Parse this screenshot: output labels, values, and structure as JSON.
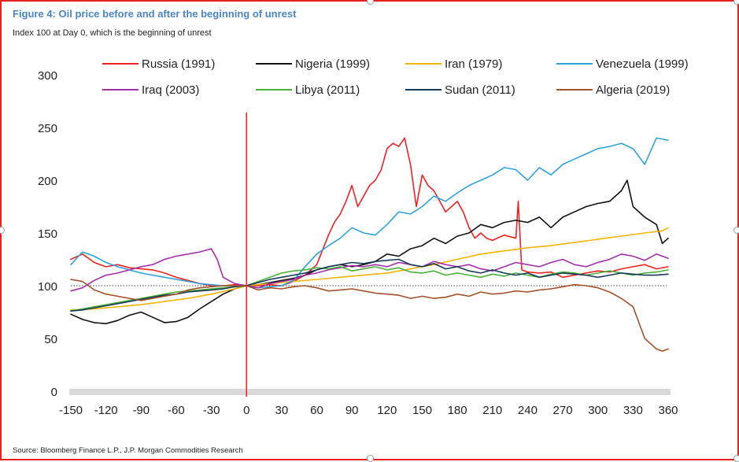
{
  "chart_data": {
    "type": "line",
    "title": "Figure 4: Oil price before and after the beginning of unrest",
    "subtitle": "Index 100 at Day 0, which is the beginning of unrest",
    "source": "Source: Bloomberg Finance L.P., J.P. Morgan Commodities Research",
    "xlabel": "",
    "ylabel": "",
    "xlim": [
      -150,
      360
    ],
    "ylim": [
      0,
      300
    ],
    "x_ticks": [
      -150,
      -120,
      -90,
      -60,
      -30,
      0,
      30,
      60,
      90,
      120,
      150,
      180,
      210,
      240,
      270,
      300,
      330,
      360
    ],
    "y_ticks": [
      0,
      50,
      100,
      150,
      200,
      250,
      300
    ],
    "reference_line_y": 100,
    "event_line_x": 0,
    "grid": false,
    "legend_position": "top",
    "series": [
      {
        "name": "Russia (1991)",
        "color": "#ee2222",
        "x": [
          -150,
          -140,
          -130,
          -120,
          -110,
          -100,
          -90,
          -80,
          -70,
          -60,
          -50,
          -40,
          -30,
          -20,
          -10,
          0,
          10,
          20,
          30,
          40,
          50,
          60,
          70,
          75,
          80,
          85,
          90,
          95,
          100,
          105,
          110,
          115,
          120,
          125,
          130,
          135,
          140,
          145,
          150,
          155,
          160,
          165,
          170,
          175,
          180,
          185,
          190,
          195,
          200,
          205,
          210,
          220,
          230,
          232,
          235,
          240,
          250,
          260,
          270,
          280,
          290,
          300,
          310,
          320,
          330,
          340,
          350,
          360
        ],
        "y": [
          125,
          130,
          122,
          118,
          120,
          117,
          116,
          115,
          112,
          108,
          105,
          102,
          100,
          100,
          101,
          100,
          100,
          101,
          100,
          104,
          110,
          120,
          148,
          160,
          168,
          180,
          195,
          175,
          185,
          195,
          200,
          210,
          230,
          235,
          232,
          240,
          215,
          175,
          205,
          195,
          190,
          180,
          170,
          175,
          180,
          170,
          155,
          145,
          150,
          145,
          143,
          148,
          145,
          180,
          115,
          113,
          112,
          113,
          108,
          110,
          112,
          114,
          113,
          116,
          118,
          120,
          116,
          118
        ]
      },
      {
        "name": "Nigeria (1999)",
        "color": "#111111",
        "x": [
          -150,
          -140,
          -130,
          -120,
          -110,
          -100,
          -90,
          -80,
          -70,
          -60,
          -50,
          -40,
          -30,
          -20,
          -10,
          0,
          10,
          20,
          30,
          40,
          50,
          60,
          70,
          80,
          90,
          100,
          110,
          120,
          130,
          140,
          150,
          160,
          170,
          180,
          190,
          200,
          210,
          220,
          230,
          240,
          250,
          260,
          270,
          280,
          290,
          300,
          310,
          320,
          325,
          330,
          340,
          350,
          355,
          360
        ],
        "y": [
          73,
          68,
          65,
          64,
          67,
          72,
          75,
          70,
          65,
          66,
          70,
          78,
          85,
          92,
          97,
          100,
          101,
          103,
          105,
          107,
          110,
          115,
          118,
          120,
          118,
          120,
          123,
          130,
          128,
          135,
          138,
          145,
          140,
          147,
          150,
          158,
          155,
          160,
          162,
          160,
          165,
          155,
          165,
          170,
          175,
          178,
          180,
          190,
          200,
          175,
          165,
          158,
          140,
          145
        ]
      },
      {
        "name": "Iran (1979)",
        "color": "#f4b400",
        "x": [
          -150,
          -130,
          -110,
          -90,
          -70,
          -50,
          -30,
          -10,
          0,
          20,
          40,
          60,
          80,
          100,
          120,
          140,
          160,
          180,
          200,
          220,
          240,
          260,
          280,
          300,
          320,
          340,
          355,
          360
        ],
        "y": [
          77,
          78,
          80,
          82,
          85,
          88,
          92,
          97,
          100,
          102,
          104,
          106,
          108,
          110,
          112,
          116,
          120,
          125,
          130,
          133,
          136,
          138,
          141,
          144,
          147,
          150,
          152,
          155
        ]
      },
      {
        "name": "Venezuela (1999)",
        "color": "#2ea1d8",
        "x": [
          -150,
          -140,
          -130,
          -120,
          -110,
          -100,
          -90,
          -80,
          -70,
          -60,
          -50,
          -40,
          -30,
          -20,
          -10,
          0,
          10,
          20,
          30,
          40,
          50,
          60,
          70,
          80,
          90,
          100,
          110,
          120,
          130,
          140,
          150,
          160,
          170,
          180,
          190,
          200,
          210,
          220,
          230,
          240,
          250,
          260,
          270,
          280,
          290,
          300,
          310,
          320,
          330,
          340,
          350,
          360
        ],
        "y": [
          120,
          132,
          128,
          122,
          118,
          115,
          112,
          110,
          108,
          106,
          104,
          102,
          101,
          100,
          100,
          100,
          98,
          99,
          100,
          105,
          118,
          130,
          138,
          145,
          155,
          150,
          148,
          158,
          170,
          168,
          175,
          185,
          180,
          188,
          195,
          200,
          205,
          212,
          210,
          200,
          212,
          205,
          215,
          220,
          225,
          230,
          232,
          235,
          230,
          215,
          240,
          238
        ]
      },
      {
        "name": "Iraq (2003)",
        "color": "#a22fa8",
        "x": [
          -150,
          -140,
          -130,
          -120,
          -110,
          -100,
          -90,
          -80,
          -70,
          -60,
          -50,
          -40,
          -30,
          -25,
          -20,
          -10,
          0,
          10,
          20,
          30,
          40,
          50,
          60,
          70,
          80,
          90,
          100,
          110,
          120,
          130,
          140,
          150,
          160,
          170,
          180,
          190,
          200,
          210,
          220,
          230,
          240,
          250,
          260,
          270,
          280,
          290,
          300,
          310,
          320,
          330,
          340,
          350,
          360
        ],
        "y": [
          95,
          98,
          105,
          110,
          112,
          115,
          118,
          120,
          125,
          128,
          130,
          132,
          135,
          125,
          108,
          102,
          100,
          98,
          102,
          104,
          106,
          110,
          112,
          115,
          117,
          119,
          118,
          120,
          118,
          122,
          120,
          118,
          123,
          120,
          118,
          120,
          116,
          114,
          118,
          122,
          120,
          118,
          122,
          125,
          120,
          118,
          122,
          125,
          130,
          128,
          124,
          130,
          126
        ]
      },
      {
        "name": "Libya (2011)",
        "color": "#4aae3a",
        "x": [
          -150,
          -140,
          -130,
          -120,
          -110,
          -100,
          -90,
          -80,
          -70,
          -60,
          -50,
          -40,
          -30,
          -20,
          -10,
          0,
          10,
          20,
          30,
          40,
          50,
          60,
          70,
          80,
          90,
          100,
          110,
          120,
          130,
          140,
          150,
          160,
          170,
          180,
          190,
          200,
          210,
          220,
          230,
          240,
          250,
          260,
          270,
          280,
          290,
          300,
          310,
          320,
          330,
          340,
          350,
          360
        ],
        "y": [
          76,
          78,
          80,
          82,
          84,
          86,
          88,
          90,
          92,
          94,
          95,
          96,
          97,
          98,
          99,
          100,
          104,
          108,
          112,
          114,
          115,
          117,
          116,
          118,
          114,
          116,
          118,
          115,
          117,
          113,
          112,
          114,
          110,
          112,
          110,
          108,
          111,
          109,
          112,
          110,
          108,
          111,
          113,
          112,
          110,
          112,
          114,
          112,
          110,
          112,
          113,
          115
        ]
      },
      {
        "name": "Sudan (2011)",
        "color": "#173a57",
        "x": [
          -150,
          -140,
          -130,
          -120,
          -110,
          -100,
          -90,
          -80,
          -70,
          -60,
          -50,
          -40,
          -30,
          -20,
          -10,
          0,
          10,
          20,
          30,
          40,
          50,
          60,
          70,
          80,
          90,
          100,
          110,
          120,
          130,
          140,
          150,
          160,
          170,
          180,
          190,
          200,
          210,
          220,
          230,
          240,
          250,
          260,
          270,
          280,
          290,
          300,
          310,
          320,
          330,
          340,
          350,
          360
        ],
        "y": [
          76,
          77,
          79,
          81,
          83,
          85,
          87,
          89,
          91,
          92,
          94,
          95,
          96,
          97,
          99,
          100,
          103,
          106,
          108,
          110,
          112,
          115,
          118,
          120,
          122,
          121,
          123,
          124,
          125,
          120,
          118,
          121,
          116,
          118,
          114,
          112,
          115,
          112,
          110,
          112,
          108,
          110,
          112,
          111,
          110,
          108,
          110,
          112,
          111,
          110,
          110,
          111
        ]
      },
      {
        "name": "Algeria (2019)",
        "color": "#a0522d",
        "x": [
          -150,
          -140,
          -130,
          -120,
          -110,
          -100,
          -90,
          -80,
          -70,
          -60,
          -50,
          -40,
          -30,
          -20,
          -10,
          0,
          10,
          20,
          30,
          40,
          50,
          60,
          70,
          80,
          90,
          100,
          110,
          120,
          130,
          140,
          150,
          160,
          170,
          180,
          190,
          200,
          210,
          220,
          230,
          240,
          250,
          260,
          270,
          280,
          290,
          300,
          310,
          320,
          330,
          335,
          340,
          345,
          350,
          355,
          360
        ],
        "y": [
          106,
          104,
          96,
          92,
          90,
          88,
          86,
          88,
          90,
          92,
          96,
          98,
          99,
          100,
          100,
          100,
          96,
          98,
          97,
          99,
          100,
          98,
          95,
          96,
          97,
          95,
          93,
          92,
          91,
          88,
          90,
          88,
          89,
          92,
          90,
          94,
          92,
          93,
          95,
          94,
          96,
          97,
          99,
          101,
          100,
          98,
          94,
          88,
          80,
          65,
          50,
          45,
          40,
          38,
          40
        ]
      }
    ]
  }
}
